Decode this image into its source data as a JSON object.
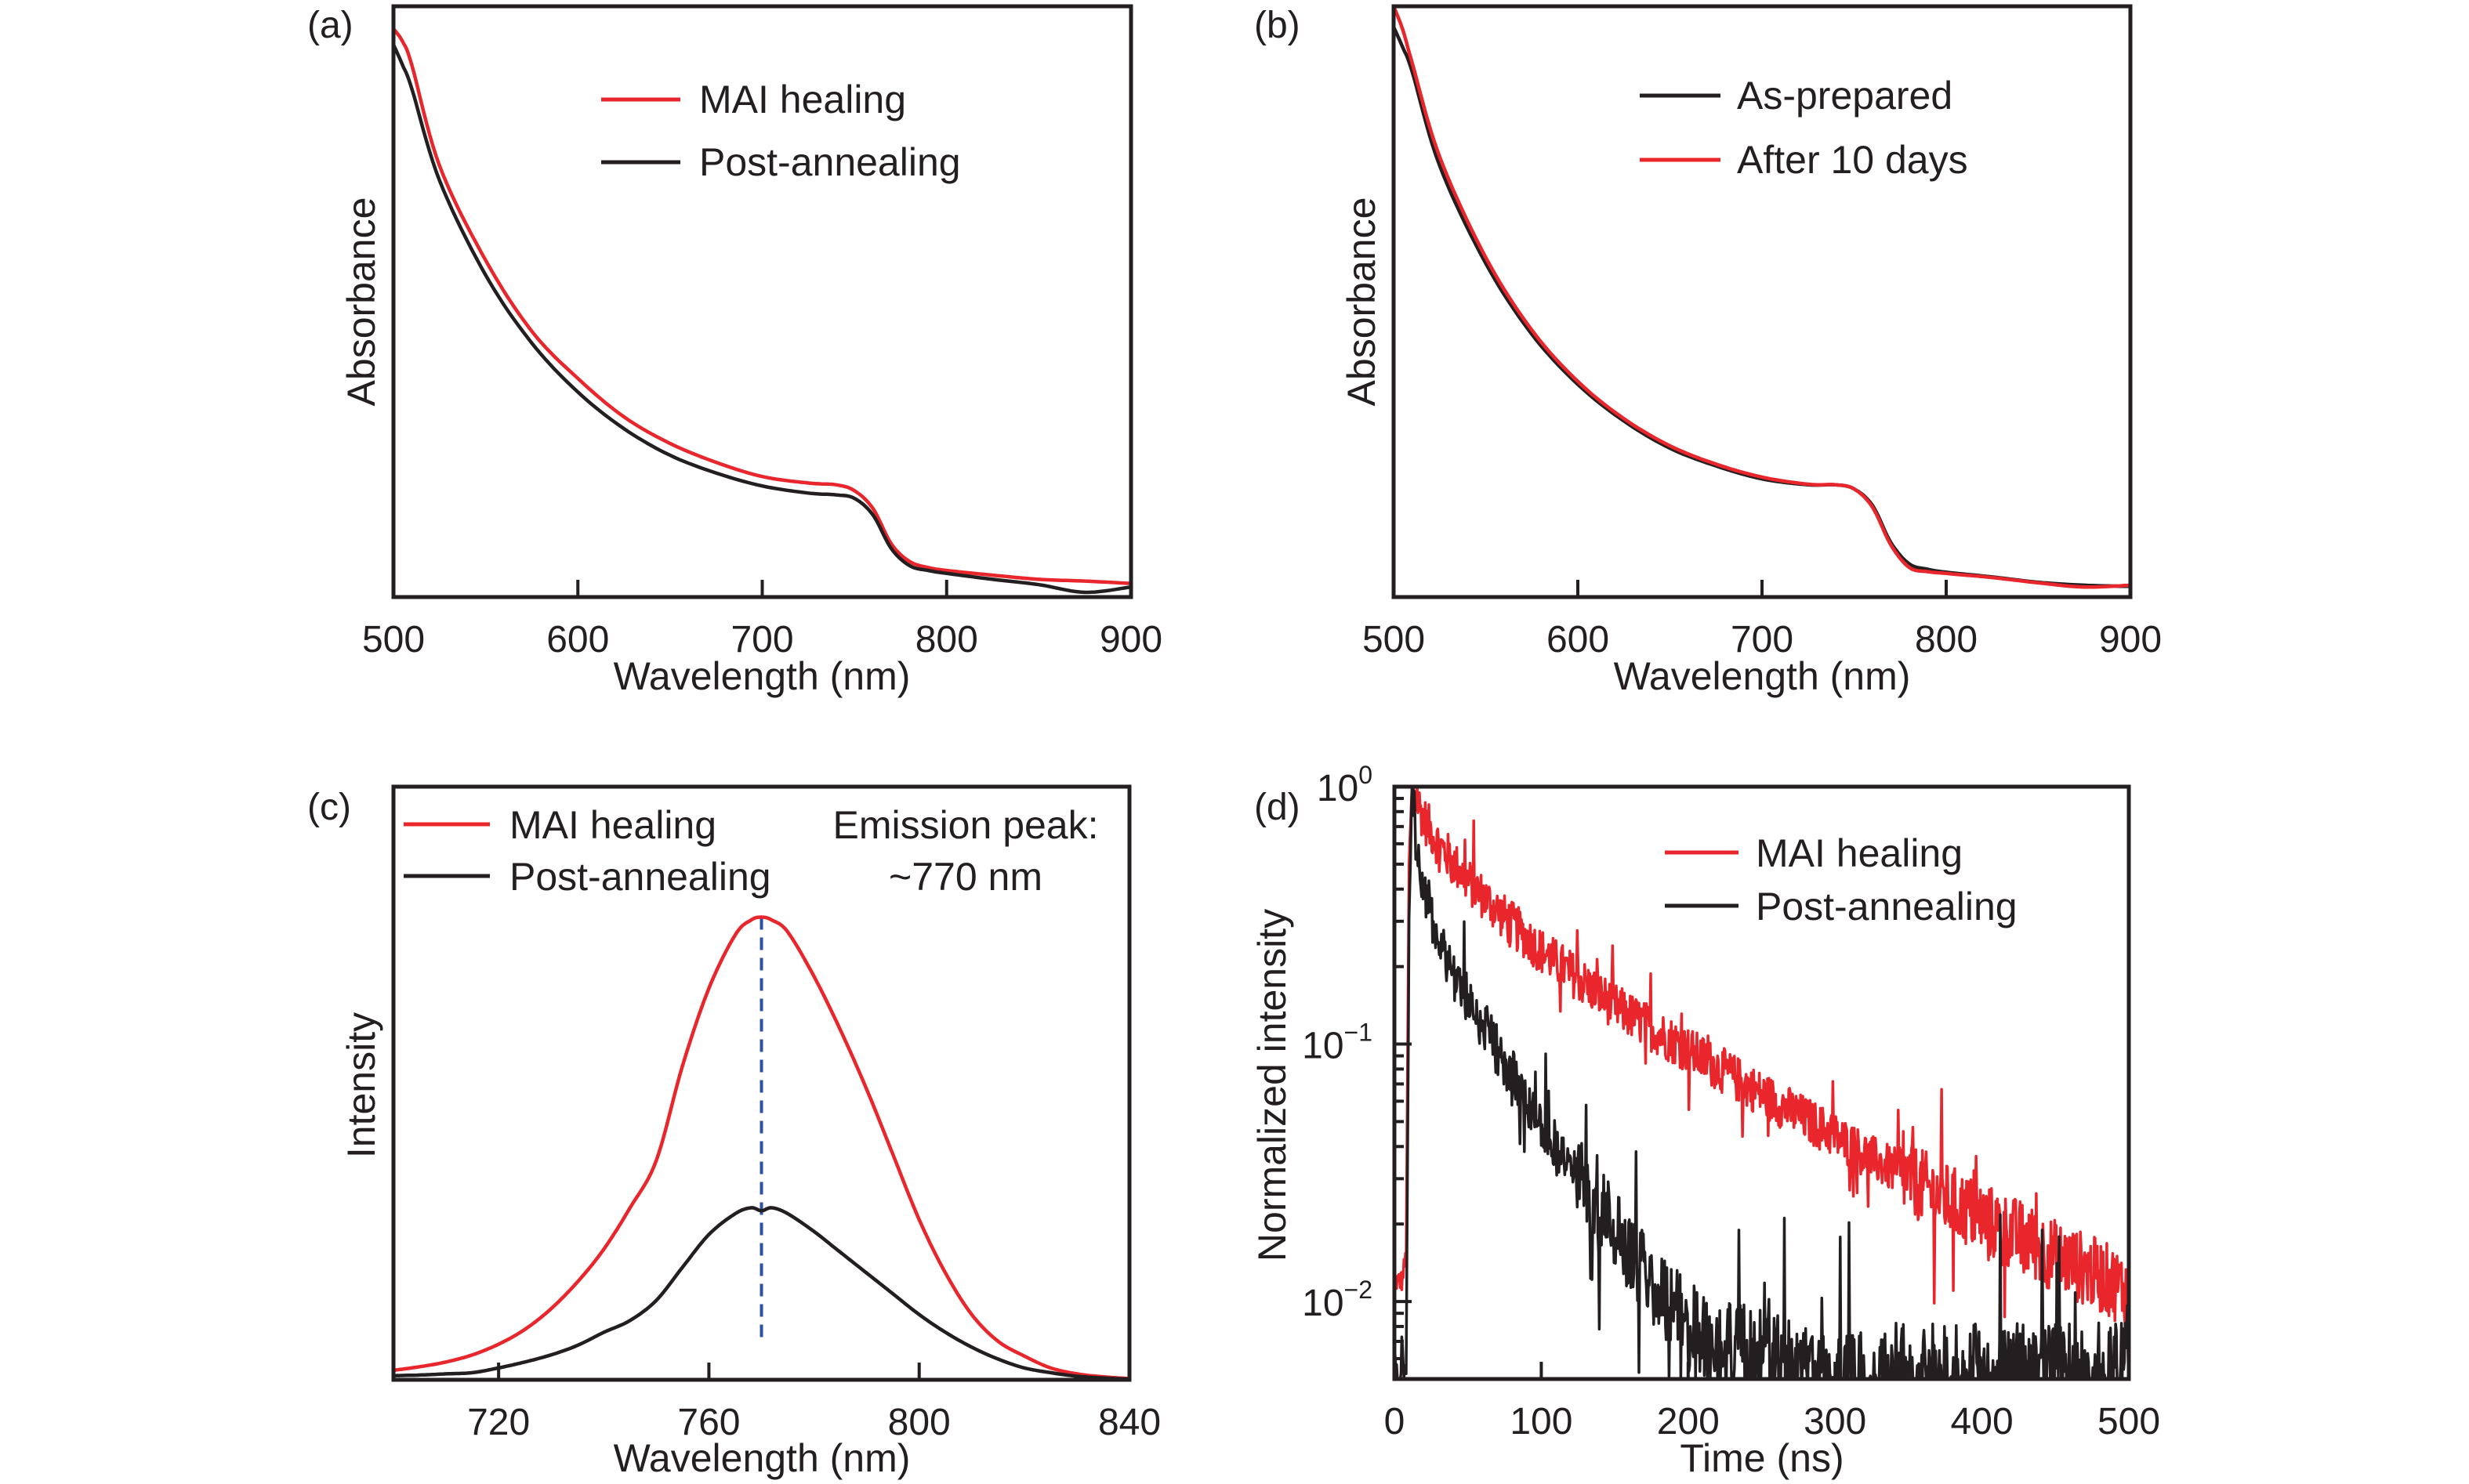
{
  "colors": {
    "red": "#e8262c",
    "black": "#231f20",
    "blue": "#2f4fa8"
  },
  "chart_data": [
    {
      "id": "a",
      "panel_label": "(a)",
      "type": "line",
      "title": "",
      "xlabel": "Wavelength (nm)",
      "ylabel": "Absorbance",
      "xlim": [
        500,
        900
      ],
      "ylim": [
        0,
        1
      ],
      "y_units": "arbitrary (normalized to axis height)",
      "x_ticks": [
        500,
        600,
        700,
        800,
        900
      ],
      "x_tick_labels": [
        "500",
        "600",
        "700",
        "800",
        "900"
      ],
      "y_ticks": [],
      "legend_position": "top-center",
      "grid": false,
      "series": [
        {
          "name": "MAI healing",
          "color_key": "red",
          "x": [
            500,
            505,
            510,
            525,
            550,
            575,
            600,
            625,
            650,
            675,
            700,
            725,
            740,
            750,
            760,
            770,
            780,
            790,
            800,
            825,
            850,
            875,
            900
          ],
          "y": [
            0.962,
            0.94,
            0.9,
            0.73,
            0.57,
            0.45,
            0.37,
            0.305,
            0.26,
            0.228,
            0.204,
            0.193,
            0.19,
            0.18,
            0.15,
            0.09,
            0.06,
            0.05,
            0.045,
            0.037,
            0.03,
            0.027,
            0.023
          ]
        },
        {
          "name": "Post-annealing",
          "color_key": "black",
          "x": [
            500,
            505,
            510,
            525,
            550,
            575,
            600,
            625,
            650,
            675,
            700,
            725,
            740,
            750,
            760,
            770,
            780,
            790,
            800,
            825,
            850,
            875,
            900
          ],
          "y": [
            0.935,
            0.9,
            0.86,
            0.705,
            0.545,
            0.43,
            0.347,
            0.285,
            0.24,
            0.21,
            0.188,
            0.176,
            0.173,
            0.167,
            0.139,
            0.082,
            0.053,
            0.045,
            0.04,
            0.03,
            0.021,
            0.008,
            0.017
          ]
        }
      ]
    },
    {
      "id": "b",
      "panel_label": "(b)",
      "type": "line",
      "title": "",
      "xlabel": "Wavelength (nm)",
      "ylabel": "Absorbance",
      "xlim": [
        500,
        900
      ],
      "ylim": [
        0,
        1
      ],
      "y_units": "arbitrary (normalized to axis height)",
      "x_ticks": [
        500,
        600,
        700,
        800,
        900
      ],
      "x_tick_labels": [
        "500",
        "600",
        "700",
        "800",
        "900"
      ],
      "y_ticks": [],
      "legend_position": "top-center",
      "grid": false,
      "series": [
        {
          "name": "As-prepared",
          "color_key": "black",
          "x": [
            500,
            505,
            510,
            525,
            550,
            575,
            600,
            625,
            650,
            675,
            700,
            725,
            740,
            750,
            760,
            770,
            780,
            790,
            800,
            825,
            850,
            875,
            900
          ],
          "y": [
            0.965,
            0.93,
            0.89,
            0.73,
            0.565,
            0.445,
            0.36,
            0.298,
            0.252,
            0.222,
            0.2,
            0.19,
            0.19,
            0.183,
            0.155,
            0.092,
            0.056,
            0.047,
            0.042,
            0.034,
            0.025,
            0.02,
            0.018
          ]
        },
        {
          "name": "After 10 days",
          "color_key": "red",
          "x": [
            500,
            505,
            510,
            525,
            550,
            575,
            600,
            625,
            650,
            675,
            700,
            725,
            740,
            750,
            760,
            770,
            780,
            790,
            800,
            825,
            850,
            875,
            900
          ],
          "y": [
            1.0,
            0.96,
            0.905,
            0.745,
            0.575,
            0.452,
            0.365,
            0.302,
            0.256,
            0.225,
            0.203,
            0.191,
            0.19,
            0.183,
            0.152,
            0.088,
            0.05,
            0.043,
            0.04,
            0.033,
            0.024,
            0.017,
            0.02
          ]
        }
      ]
    },
    {
      "id": "c",
      "panel_label": "(c)",
      "type": "line",
      "title": "",
      "xlabel": "Wavelength (nm)",
      "ylabel": "Intensity",
      "xlim": [
        700,
        840
      ],
      "ylim": [
        0,
        1
      ],
      "y_units": "arbitrary (normalized to axis height)",
      "x_ticks": [
        720,
        760,
        800,
        840
      ],
      "x_tick_labels": [
        "720",
        "760",
        "800",
        "840"
      ],
      "y_ticks": [],
      "legend_position": "top-left",
      "grid": false,
      "annotation": {
        "text_line1": "Emission peak:",
        "text_line2": "~770 nm",
        "color_key": "blue",
        "vline_x": 770,
        "vline_y_range": [
          0.07,
          0.78
        ],
        "style": "dashed"
      },
      "series": [
        {
          "name": "MAI healing",
          "color_key": "red",
          "x": [
            700,
            705,
            710,
            715,
            720,
            725,
            730,
            735,
            740,
            745,
            750,
            755,
            760,
            765,
            768,
            770,
            772,
            775,
            780,
            785,
            790,
            795,
            800,
            805,
            810,
            815,
            820,
            825,
            830,
            835,
            840
          ],
          "y": [
            0.016,
            0.022,
            0.03,
            0.042,
            0.06,
            0.085,
            0.12,
            0.165,
            0.22,
            0.29,
            0.37,
            0.53,
            0.66,
            0.75,
            0.775,
            0.78,
            0.775,
            0.755,
            0.68,
            0.59,
            0.49,
            0.38,
            0.27,
            0.18,
            0.11,
            0.065,
            0.04,
            0.02,
            0.01,
            0.005,
            0.002
          ]
        },
        {
          "name": "Post-annealing",
          "color_key": "black",
          "x": [
            700,
            705,
            710,
            715,
            720,
            725,
            730,
            735,
            740,
            745,
            750,
            755,
            760,
            765,
            768,
            770,
            772,
            775,
            780,
            785,
            790,
            795,
            800,
            805,
            810,
            815,
            820,
            825,
            830,
            835,
            840
          ],
          "y": [
            0.007,
            0.008,
            0.01,
            0.012,
            0.02,
            0.03,
            0.042,
            0.058,
            0.08,
            0.1,
            0.134,
            0.19,
            0.245,
            0.28,
            0.29,
            0.285,
            0.29,
            0.28,
            0.25,
            0.215,
            0.18,
            0.145,
            0.11,
            0.08,
            0.055,
            0.035,
            0.02,
            0.012,
            0.006,
            0.003,
            0.001
          ]
        }
      ]
    },
    {
      "id": "d",
      "panel_label": "(d)",
      "type": "line",
      "title": "",
      "xlabel": "Time (ns)",
      "ylabel": "Normalized intensity",
      "xlim": [
        0,
        500
      ],
      "ylim": [
        0.005,
        1
      ],
      "y_scale": "log",
      "x_ticks": [
        0,
        100,
        200,
        300,
        400,
        500
      ],
      "x_tick_labels": [
        "0",
        "100",
        "200",
        "300",
        "400",
        "500"
      ],
      "y_ticks": [
        1,
        0.1,
        0.01
      ],
      "y_tick_labels": [
        {
          "base": "10",
          "exp": "0"
        },
        {
          "base": "10",
          "exp": "−1"
        },
        {
          "base": "10",
          "exp": "−2"
        }
      ],
      "legend_position": "top-right",
      "grid": false,
      "series": [
        {
          "name": "MAI healing",
          "color_key": "red",
          "noise_decades": 0.09,
          "x": [
            0,
            5,
            8,
            10,
            12,
            20,
            30,
            50,
            75,
            100,
            125,
            150,
            175,
            200,
            225,
            250,
            275,
            300,
            325,
            350,
            375,
            400,
            425,
            450,
            475,
            500
          ],
          "y": [
            0.012,
            0.012,
            0.015,
            0.5,
            1.0,
            0.75,
            0.6,
            0.43,
            0.31,
            0.23,
            0.18,
            0.14,
            0.115,
            0.095,
            0.078,
            0.064,
            0.053,
            0.044,
            0.036,
            0.03,
            0.025,
            0.021,
            0.018,
            0.015,
            0.013,
            0.011
          ]
        },
        {
          "name": "Post-annealing",
          "color_key": "black",
          "noise_decades": 0.1,
          "x": [
            0,
            5,
            8,
            10,
            12,
            15,
            20,
            30,
            40,
            50,
            60,
            75,
            100,
            125,
            150,
            175,
            200,
            225,
            250,
            275,
            300,
            325,
            350,
            400,
            450,
            500
          ],
          "y": [
            0.006,
            0.005,
            0.005,
            0.3,
            1.0,
            0.6,
            0.4,
            0.26,
            0.19,
            0.15,
            0.12,
            0.085,
            0.05,
            0.03,
            0.019,
            0.012,
            0.008,
            0.0065,
            0.0058,
            0.0052,
            0.005,
            0.005,
            0.005,
            0.005,
            0.005,
            0.005
          ]
        }
      ]
    }
  ]
}
